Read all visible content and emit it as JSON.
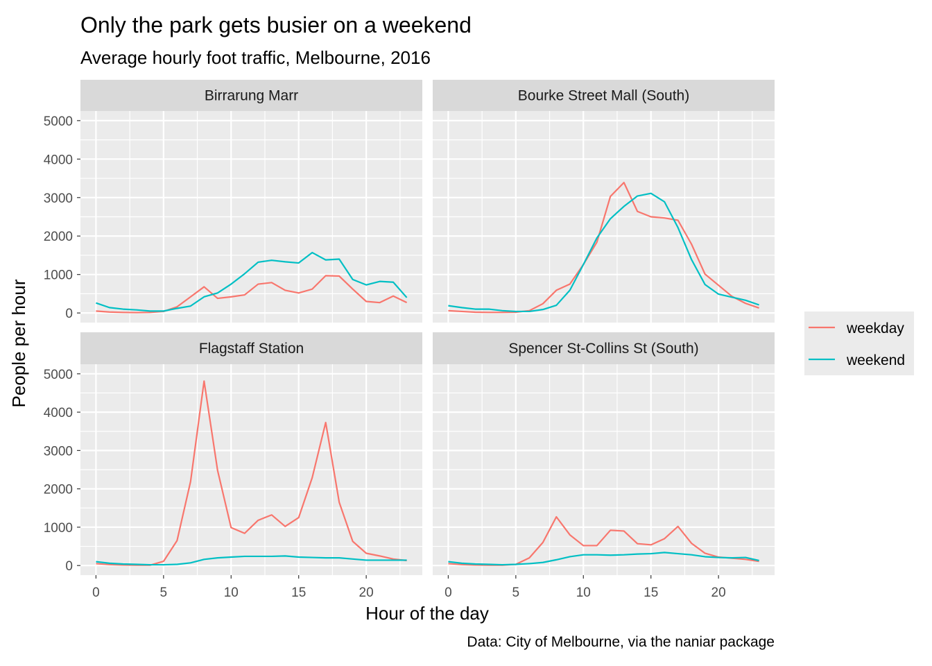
{
  "chart_data": {
    "type": "line",
    "title": "Only the park gets busier on a weekend",
    "subtitle": "Average hourly foot traffic, Melbourne, 2016",
    "xlabel": "Hour of the day",
    "ylabel": "People per hour",
    "caption": "Data: City of Melbourne, via the naniar package",
    "x": [
      0,
      1,
      2,
      3,
      4,
      5,
      6,
      7,
      8,
      9,
      10,
      11,
      12,
      13,
      14,
      15,
      16,
      17,
      18,
      19,
      20,
      21,
      22,
      23
    ],
    "xlim": [
      -1.15,
      24.15
    ],
    "ylim": [
      -250,
      5250
    ],
    "xticks": [
      0,
      5,
      10,
      15,
      20
    ],
    "yticks": [
      0,
      1000,
      2000,
      3000,
      4000,
      5000
    ],
    "grid": true,
    "legend": "right",
    "series_names": [
      "weekday",
      "weekend"
    ],
    "colors": {
      "weekday": "#F8766D",
      "weekend": "#00BFC4"
    },
    "panels": [
      {
        "name": "Birrarung Marr",
        "series": [
          {
            "name": "weekday",
            "values": [
              50,
              25,
              15,
              10,
              15,
              40,
              160,
              420,
              680,
              380,
              420,
              470,
              750,
              790,
              590,
              520,
              620,
              970,
              960,
              620,
              300,
              270,
              440,
              270
            ]
          },
          {
            "name": "weekend",
            "values": [
              260,
              140,
              100,
              80,
              50,
              50,
              120,
              180,
              420,
              520,
              750,
              1020,
              1320,
              1370,
              1330,
              1300,
              1570,
              1380,
              1400,
              870,
              730,
              820,
              800,
              400
            ]
          }
        ]
      },
      {
        "name": "Bourke Street Mall (South)",
        "series": [
          {
            "name": "weekday",
            "values": [
              60,
              40,
              20,
              15,
              15,
              20,
              60,
              240,
              590,
              750,
              1260,
              1840,
              3030,
              3390,
              2640,
              2500,
              2470,
              2410,
              1790,
              1010,
              720,
              430,
              250,
              130
            ]
          },
          {
            "name": "weekend",
            "values": [
              190,
              140,
              100,
              100,
              60,
              40,
              40,
              90,
              200,
              590,
              1260,
              1950,
              2450,
              2770,
              3040,
              3110,
              2890,
              2220,
              1390,
              740,
              490,
              410,
              330,
              210
            ]
          }
        ]
      },
      {
        "name": "Flagstaff Station",
        "series": [
          {
            "name": "weekday",
            "values": [
              50,
              25,
              15,
              10,
              10,
              110,
              650,
              2190,
              4810,
              2480,
              990,
              840,
              1180,
              1320,
              1020,
              1250,
              2290,
              3730,
              1650,
              630,
              320,
              250,
              170,
              130
            ]
          },
          {
            "name": "weekend",
            "values": [
              100,
              60,
              40,
              30,
              20,
              20,
              30,
              70,
              160,
              200,
              220,
              240,
              240,
              240,
              250,
              220,
              210,
              200,
              200,
              170,
              140,
              140,
              140,
              140
            ]
          }
        ]
      },
      {
        "name": "Spencer St-Collins St (South)",
        "series": [
          {
            "name": "weekday",
            "values": [
              50,
              25,
              15,
              10,
              10,
              30,
              200,
              600,
              1270,
              800,
              520,
              520,
              920,
              900,
              570,
              540,
              700,
              1020,
              580,
              320,
              220,
              190,
              160,
              110
            ]
          },
          {
            "name": "weekend",
            "values": [
              100,
              60,
              40,
              30,
              20,
              30,
              50,
              80,
              150,
              230,
              280,
              280,
              270,
              280,
              300,
              310,
              340,
              310,
              280,
              230,
              210,
              200,
              210,
              130
            ]
          }
        ]
      }
    ]
  }
}
